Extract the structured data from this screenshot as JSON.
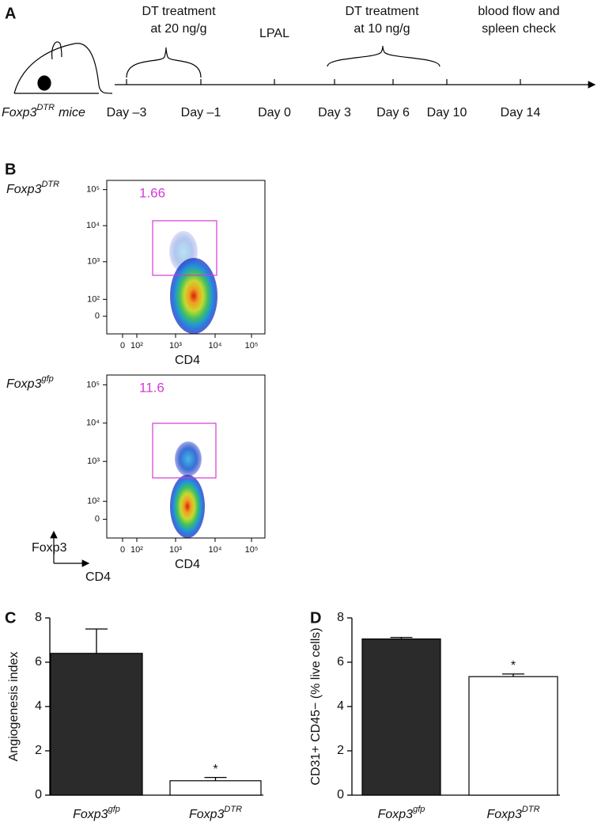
{
  "panel_labels": [
    "A",
    "B",
    "C",
    "D"
  ],
  "timeline": {
    "mouse_label": {
      "base": "Foxp3",
      "sup": "DTR",
      "suffix": "mice"
    },
    "days": [
      "Day –3",
      "Day –1",
      "Day 0",
      "Day 3",
      "Day 6",
      "Day 10",
      "Day 14"
    ],
    "events": [
      {
        "lines": [
          "DT treatment",
          "at 20 ng/g"
        ]
      },
      {
        "lines": [
          "LPAL"
        ]
      },
      {
        "lines": [
          "DT treatment",
          "at 10 ng/g"
        ]
      },
      {
        "lines": [
          "blood flow and",
          "spleen check"
        ]
      }
    ]
  },
  "flow": {
    "x_label": "CD4",
    "y_tick_labels": [
      "10⁵",
      "10⁴",
      "10³",
      "10²",
      "0"
    ],
    "x_tick_labels": [
      "0",
      "10²",
      "10³",
      "10⁴",
      "10⁵"
    ],
    "legend_axes": [
      "Foxp3",
      "CD4"
    ],
    "plots": [
      {
        "sample": {
          "base": "Foxp3",
          "sup": "DTR"
        },
        "gate_percent": 1.66
      },
      {
        "sample": {
          "base": "Foxp3",
          "sup": "gfp"
        },
        "gate_percent": 11.6
      }
    ]
  },
  "chart_data": [
    {
      "type": "bar",
      "ylabel": "Angiogenesis index",
      "categories": [
        {
          "base": "Foxp3",
          "sup": "gfp"
        },
        {
          "base": "Foxp3",
          "sup": "DTR"
        }
      ],
      "values": [
        6.4,
        0.65
      ],
      "errors": [
        1.1,
        0.15
      ],
      "colors": [
        "#2b2b2b",
        "#ffffff"
      ],
      "annotations": [
        null,
        "*"
      ],
      "ylim": [
        0,
        8
      ],
      "yticks": [
        0,
        2,
        4,
        6,
        8
      ]
    },
    {
      "type": "bar",
      "ylabel": "CD31+ CD45− (% live cells)",
      "categories": [
        {
          "base": "Foxp3",
          "sup": "gfp"
        },
        {
          "base": "Foxp3",
          "sup": "DTR"
        }
      ],
      "values": [
        7.05,
        5.35
      ],
      "errors": [
        0.07,
        0.12
      ],
      "colors": [
        "#2b2b2b",
        "#ffffff"
      ],
      "annotations": [
        null,
        "*"
      ],
      "ylim": [
        0,
        8
      ],
      "yticks": [
        0,
        2,
        4,
        6,
        8
      ]
    }
  ]
}
